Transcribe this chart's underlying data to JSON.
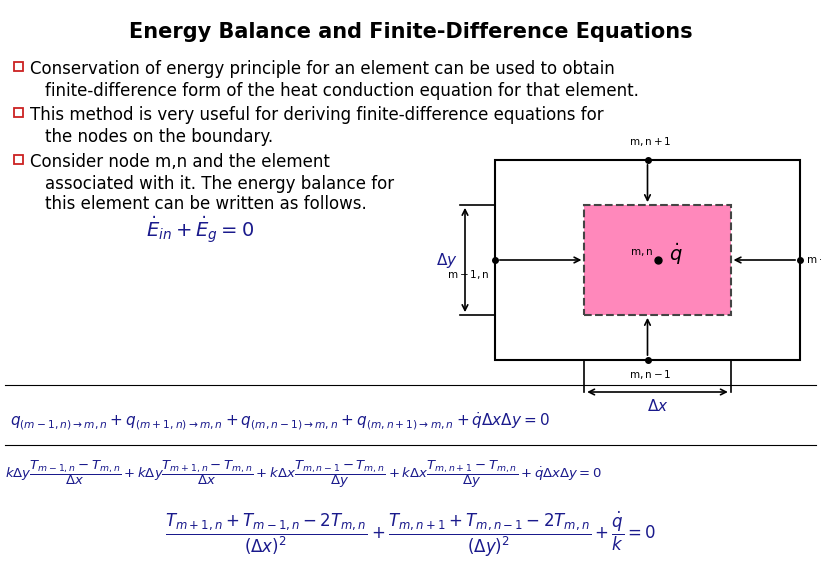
{
  "title": "Energy Balance and Finite-Difference Equations",
  "title_fontsize": 15,
  "title_fontweight": "bold",
  "background_color": "#ffffff",
  "text_color": "#000000",
  "math_color": "#1a1a8c",
  "bullet_color": "#cc2222",
  "bullet_fs": 12,
  "eq0_fs": 14,
  "eq1_fs": 11,
  "eq2_fs": 9.5,
  "eq3_fs": 12,
  "inner_rect_color": "#ff88bb",
  "bullet1_l1": "Conservation of energy principle for an element can be used to obtain",
  "bullet1_l2": "finite-difference form of the heat conduction equation for that element.",
  "bullet2_l1": "This method is very useful for deriving finite-difference equations for",
  "bullet2_l2": "the nodes on the boundary.",
  "bullet3_l1": "Consider node m,n and the element",
  "bullet3_l2": "associated with it. The energy balance for",
  "bullet3_l3": "this element can be written as follows."
}
